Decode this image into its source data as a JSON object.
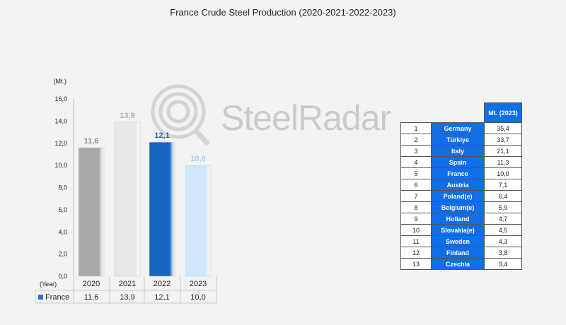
{
  "title": "France Crude Steel Production (2020-2021-2022-2023)",
  "watermark": "SteelRadar",
  "chart_data": {
    "type": "bar",
    "ylabel": "(Mt.)",
    "xlabel": "(Year)",
    "ylim": [
      0,
      16
    ],
    "yticks": [
      "0,0",
      "2,0",
      "4,0",
      "6,0",
      "8,0",
      "10,0",
      "12,0",
      "14,0",
      "16,0"
    ],
    "categories": [
      "2020",
      "2021",
      "2022",
      "2023"
    ],
    "values": [
      11.6,
      13.9,
      12.1,
      10.0
    ],
    "value_labels": [
      "11,6",
      "13,9",
      "12,1",
      "10,0"
    ],
    "series": [
      {
        "name": "France",
        "values": [
          11.6,
          13.9,
          12.1,
          10.0
        ]
      }
    ],
    "table_row_label": "France",
    "table_values": [
      "11,6",
      "13,9",
      "12,1",
      "10,0"
    ],
    "colors": [
      "#a8a8a8",
      "#e8e8e8",
      "#1565c0",
      "#cfe6fb"
    ],
    "label_colors": [
      "#8e8e8e",
      "#b0b0b0",
      "#1a5fb0",
      "#a6cdee"
    ],
    "legend_color": "#2f6fc4"
  },
  "ranking": {
    "header": "Mt. (2023)",
    "rows": [
      {
        "rank": "1",
        "country": "Germany",
        "value": "35,4"
      },
      {
        "rank": "2",
        "country": "Türkiye",
        "value": "33,7"
      },
      {
        "rank": "3",
        "country": "Italy",
        "value": "21,1"
      },
      {
        "rank": "4",
        "country": "Spain",
        "value": "11,3"
      },
      {
        "rank": "5",
        "country": "France",
        "value": "10,0"
      },
      {
        "rank": "6",
        "country": "Austria",
        "value": "7,1"
      },
      {
        "rank": "7",
        "country": "Poland(e)",
        "value": "6,4"
      },
      {
        "rank": "8",
        "country": "Belgium(e)",
        "value": "5,9"
      },
      {
        "rank": "9",
        "country": "Holland",
        "value": "4,7"
      },
      {
        "rank": "10",
        "country": "Slovakia(e)",
        "value": "4,5"
      },
      {
        "rank": "11",
        "country": "Sweden",
        "value": "4,3"
      },
      {
        "rank": "12",
        "country": "Finland",
        "value": "3,8"
      },
      {
        "rank": "13",
        "country": "Czechia",
        "value": "3,4"
      }
    ]
  }
}
